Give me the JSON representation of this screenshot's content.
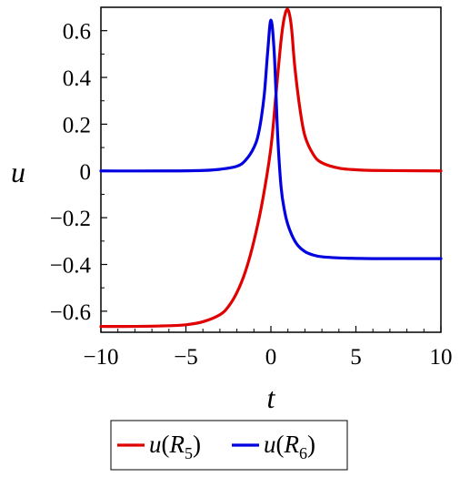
{
  "chart_data": {
    "type": "line",
    "title": "",
    "xlabel": "t",
    "ylabel": "u",
    "xlim": [
      -10,
      10
    ],
    "ylim": [
      -0.69,
      0.7
    ],
    "x_ticks": [
      -10,
      -5,
      0,
      5,
      10
    ],
    "x_tick_labels": [
      "−10",
      "−5",
      "0",
      "5",
      "10"
    ],
    "y_ticks": [
      -0.6,
      -0.4,
      -0.2,
      0,
      0.2,
      0.4,
      0.6
    ],
    "y_tick_labels": [
      "−0.6",
      "−0.4",
      "−0.2",
      "0",
      "0.2",
      "0.4",
      "0.6"
    ],
    "grid": false,
    "legend_position": "bottom",
    "series": [
      {
        "name": "u(R5)",
        "legend_func": "u",
        "legend_var": "R",
        "legend_sub": "5",
        "color": "#e00000",
        "x": [
          -10,
          -8,
          -6,
          -5,
          -4,
          -3,
          -2.5,
          -2,
          -1.5,
          -1,
          -0.5,
          0,
          0.3,
          0.6,
          0.8,
          1,
          1.2,
          1.4,
          1.7,
          2,
          2.5,
          3,
          4,
          5,
          6,
          8,
          10
        ],
        "y": [
          -0.665,
          -0.665,
          -0.662,
          -0.658,
          -0.645,
          -0.615,
          -0.58,
          -0.52,
          -0.43,
          -0.3,
          -0.13,
          0.1,
          0.33,
          0.56,
          0.66,
          0.69,
          0.62,
          0.45,
          0.27,
          0.15,
          0.07,
          0.035,
          0.012,
          0.005,
          0.002,
          0.001,
          0
        ]
      },
      {
        "name": "u(R6)",
        "legend_func": "u",
        "legend_var": "R",
        "legend_sub": "6",
        "color": "#0000e0",
        "x": [
          -10,
          -6,
          -4,
          -3,
          -2,
          -1.5,
          -1,
          -0.7,
          -0.4,
          -0.2,
          0,
          0.2,
          0.4,
          0.6,
          0.8,
          1,
          1.3,
          1.6,
          2,
          2.5,
          3,
          4,
          5,
          6,
          8,
          10
        ],
        "y": [
          0,
          0,
          0.002,
          0.007,
          0.02,
          0.045,
          0.1,
          0.17,
          0.32,
          0.5,
          0.645,
          0.5,
          0.15,
          -0.07,
          -0.17,
          -0.23,
          -0.285,
          -0.32,
          -0.345,
          -0.36,
          -0.367,
          -0.372,
          -0.374,
          -0.375,
          -0.375,
          -0.375
        ]
      }
    ]
  }
}
